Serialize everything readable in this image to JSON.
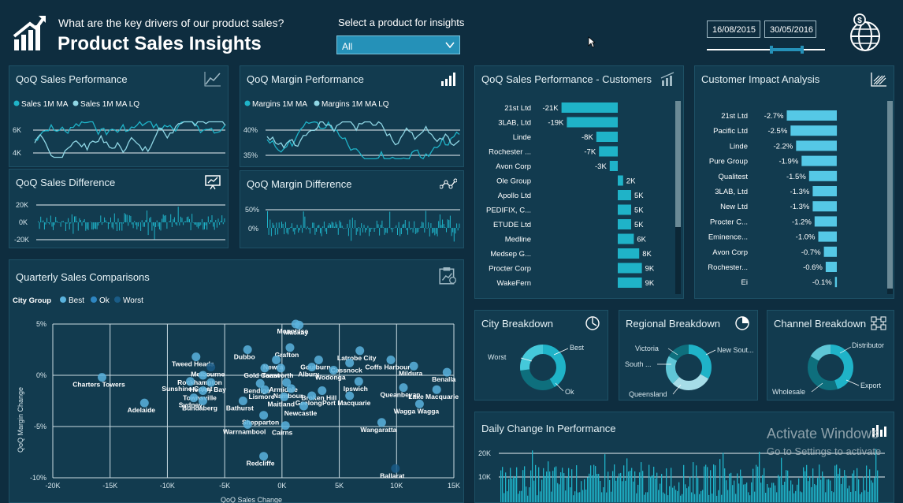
{
  "header": {
    "question": "What are the key drivers of our product sales?",
    "title": "Product Sales Insights",
    "select_label": "Select a product for insights",
    "product_select": {
      "value": "All"
    },
    "date_start": "16/08/2015",
    "date_end": "30/05/2016"
  },
  "panels": {
    "qoq_sales": {
      "title": "QoQ Sales Performance",
      "legend": [
        "Sales 1M MA",
        "Sales 1M MA LQ"
      ],
      "yticks": [
        "6K",
        "4K"
      ]
    },
    "qoq_margin": {
      "title": "QoQ Margin Performance",
      "legend": [
        "Margins 1M MA",
        "Margins 1M MA LQ"
      ],
      "yticks": [
        "40%",
        "35%"
      ]
    },
    "qoq_sales_diff": {
      "title": "QoQ Sales Difference",
      "yticks": [
        "20K",
        "0K",
        "-20K"
      ]
    },
    "qoq_margin_diff": {
      "title": "QoQ Margin Difference",
      "yticks": [
        "50%",
        "0%"
      ]
    },
    "customers": {
      "title": "QoQ Sales Performance - Customers"
    },
    "customer_impact": {
      "title": "Customer Impact Analysis"
    },
    "city_breakdown": {
      "title": "City Breakdown",
      "labels": [
        "Best",
        "Worst",
        "Ok"
      ]
    },
    "regional_breakdown": {
      "title": "Regional Breakdown",
      "labels": [
        "Victoria",
        "New Sout...",
        "South ...",
        "Queensland"
      ]
    },
    "channel_breakdown": {
      "title": "Channel Breakdown",
      "labels": [
        "Distributor",
        "Export",
        "Wholesale"
      ]
    },
    "daily_change": {
      "title": "Daily Change In Performance",
      "yticks": [
        "20K",
        "10K"
      ]
    },
    "quarterly": {
      "title": "Quarterly Sales Comparisons",
      "legend_title": "City Group",
      "legend": [
        "Best",
        "Ok",
        "Worst"
      ],
      "xlabel": "QoQ Sales Change",
      "ylabel": "QoQ Margin Change"
    }
  },
  "watermark": {
    "line1": "Activate Windows",
    "line2": "Go to Settings to activate"
  },
  "colors": {
    "background": "#0e2d3f",
    "panel": "#123b4f",
    "accent": "#1fb3c8",
    "bar": "#2ab9d3",
    "light_bar": "#55c8e6"
  },
  "chart_data": [
    {
      "type": "bar",
      "title": "QoQ Sales Performance - Customers",
      "categories": [
        "21st Ltd",
        "3LAB, Ltd",
        "Linde",
        "Rochester ...",
        "Avon Corp",
        "Ole Group",
        "Apollo Ltd",
        "PEDIFIX, C...",
        "ETUDE Ltd",
        "Medline",
        "Medsep G...",
        "Procter Corp",
        "WakeFern"
      ],
      "labels": [
        "-21K",
        "-19K",
        "-8K",
        "-7K",
        "-3K",
        "2K",
        "5K",
        "5K",
        "5K",
        "6K",
        "8K",
        "9K",
        "9K"
      ],
      "values": [
        -21,
        -19,
        -8,
        -7,
        -3,
        2,
        5,
        5,
        5,
        6,
        8,
        9,
        9
      ]
    },
    {
      "type": "bar",
      "title": "Customer Impact Analysis",
      "categories": [
        "21st Ltd",
        "Pacific Ltd",
        "Linde",
        "Pure Group",
        "Qualitest",
        "3LAB, Ltd",
        "New Ltd",
        "Procter C...",
        "Eminence...",
        "Avon Corp",
        "Rochester...",
        "Ei"
      ],
      "labels": [
        "-2.7%",
        "-2.5%",
        "-2.2%",
        "-1.9%",
        "-1.5%",
        "-1.3%",
        "-1.3%",
        "-1.2%",
        "-1.0%",
        "-0.7%",
        "-0.6%",
        "-0.1%"
      ],
      "values": [
        -2.7,
        -2.5,
        -2.2,
        -1.9,
        -1.5,
        -1.3,
        -1.3,
        -1.2,
        -1.0,
        -0.7,
        -0.6,
        -0.1
      ]
    },
    {
      "type": "scatter",
      "title": "Quarterly Sales Comparisons",
      "xlabel": "QoQ Sales Change",
      "ylabel": "QoQ Margin Change",
      "xticks": [
        "-20K",
        "-15K",
        "-10K",
        "-5K",
        "0K",
        "5K",
        "10K",
        "15K"
      ],
      "yticks": [
        "5%",
        "0%",
        "-5%",
        "-10%"
      ],
      "xlim": [
        -20,
        15
      ],
      "ylim": [
        -10,
        5
      ],
      "points": [
        {
          "label": "Charters Towers",
          "x": -15.7,
          "y": -0.2,
          "group": "Ok"
        },
        {
          "label": "Adelaide",
          "x": -12.0,
          "y": -2.7,
          "group": "Ok"
        },
        {
          "label": "Tweed Heads",
          "x": -7.5,
          "y": 1.8,
          "group": "Ok"
        },
        {
          "label": "Melbourne",
          "x": -6.2,
          "y": 0.8,
          "group": "Worst"
        },
        {
          "label": "Rockhampton",
          "x": -6.9,
          "y": 0.0,
          "group": "Ok"
        },
        {
          "label": "Sunshine Coast",
          "x": -8.0,
          "y": -0.6,
          "group": "Ok"
        },
        {
          "label": "Hervey Bay",
          "x": -6.2,
          "y": -0.7,
          "group": "Ok"
        },
        {
          "label": "Townsville",
          "x": -6.9,
          "y": -1.5,
          "group": "Ok"
        },
        {
          "label": "Sydney",
          "x": -7.7,
          "y": -2.2,
          "group": "Ok"
        },
        {
          "label": "Bundaberg",
          "x": -6.9,
          "y": -2.5,
          "group": "Ok"
        },
        {
          "label": "Bathurst",
          "x": -3.4,
          "y": -2.5,
          "group": "Ok"
        },
        {
          "label": "Dubbo",
          "x": -3.0,
          "y": 2.5,
          "group": "Ok"
        },
        {
          "label": "Mount Isa",
          "x": 1.2,
          "y": 5.0,
          "group": "Ok"
        },
        {
          "label": "Mackay",
          "x": 1.5,
          "y": 4.9,
          "group": "Ok"
        },
        {
          "label": "Grafton",
          "x": 0.7,
          "y": 2.7,
          "group": "Ok"
        },
        {
          "label": "Newra",
          "x": -0.5,
          "y": 1.5,
          "group": "Ok"
        },
        {
          "label": "Goulburn",
          "x": 3.2,
          "y": 1.5,
          "group": "Ok"
        },
        {
          "label": "Gold Coast",
          "x": -1.5,
          "y": 0.7,
          "group": "Ok"
        },
        {
          "label": "Tamworth",
          "x": -0.1,
          "y": 0.7,
          "group": "Ok"
        },
        {
          "label": "Albury",
          "x": 2.6,
          "y": 0.8,
          "group": "Ok"
        },
        {
          "label": "Latrobe City",
          "x": 6.8,
          "y": 2.4,
          "group": "Ok"
        },
        {
          "label": "Cessnock",
          "x": 5.9,
          "y": 1.2,
          "group": "Ok"
        },
        {
          "label": "Coffs Harbour",
          "x": 9.5,
          "y": 1.5,
          "group": "Ok"
        },
        {
          "label": "Wodonga",
          "x": 4.5,
          "y": 0.5,
          "group": "Ok"
        },
        {
          "label": "Mildura",
          "x": 11.5,
          "y": 0.9,
          "group": "Ok"
        },
        {
          "label": "Benalla",
          "x": 14.4,
          "y": 0.3,
          "group": "Ok"
        },
        {
          "label": "Bendigo",
          "x": -1.9,
          "y": -0.8,
          "group": "Ok"
        },
        {
          "label": "Armidale",
          "x": 0.4,
          "y": -0.7,
          "group": "Ok"
        },
        {
          "label": "Ipswich",
          "x": 6.7,
          "y": -0.6,
          "group": "Ok"
        },
        {
          "label": "Queanbeyan",
          "x": 10.6,
          "y": -1.2,
          "group": "Ok"
        },
        {
          "label": "Lismore",
          "x": -1.5,
          "y": -1.4,
          "group": "Ok"
        },
        {
          "label": "Nambour",
          "x": 0.8,
          "y": -1.3,
          "group": "Ok"
        },
        {
          "label": "Broken Hill",
          "x": 3.5,
          "y": -1.5,
          "group": "Ok"
        },
        {
          "label": "Maitland",
          "x": 0.2,
          "y": -2.1,
          "group": "Ok"
        },
        {
          "label": "Geelong",
          "x": 2.6,
          "y": -2.0,
          "group": "Ok"
        },
        {
          "label": "Port Macquarie",
          "x": 5.9,
          "y": -2.0,
          "group": "Ok"
        },
        {
          "label": "Lake Macquarie",
          "x": 13.5,
          "y": -1.4,
          "group": "Ok"
        },
        {
          "label": "Newcastle",
          "x": 1.9,
          "y": -3.0,
          "group": "Ok"
        },
        {
          "label": "Wagga Wagga",
          "x": 12.0,
          "y": -2.8,
          "group": "Ok"
        },
        {
          "label": "Shepparton",
          "x": -1.6,
          "y": -3.9,
          "group": "Ok"
        },
        {
          "label": "Warrnambool",
          "x": -3.0,
          "y": -4.8,
          "group": "Ok"
        },
        {
          "label": "Cairns",
          "x": 0.3,
          "y": -4.9,
          "group": "Ok"
        },
        {
          "label": "Wangaratta",
          "x": 8.7,
          "y": -4.6,
          "group": "Ok"
        },
        {
          "label": "Redcliffe",
          "x": -1.6,
          "y": -7.9,
          "group": "Ok"
        },
        {
          "label": "Ballarat",
          "x": 9.9,
          "y": -9.1,
          "group": "Worst"
        }
      ]
    }
  ]
}
